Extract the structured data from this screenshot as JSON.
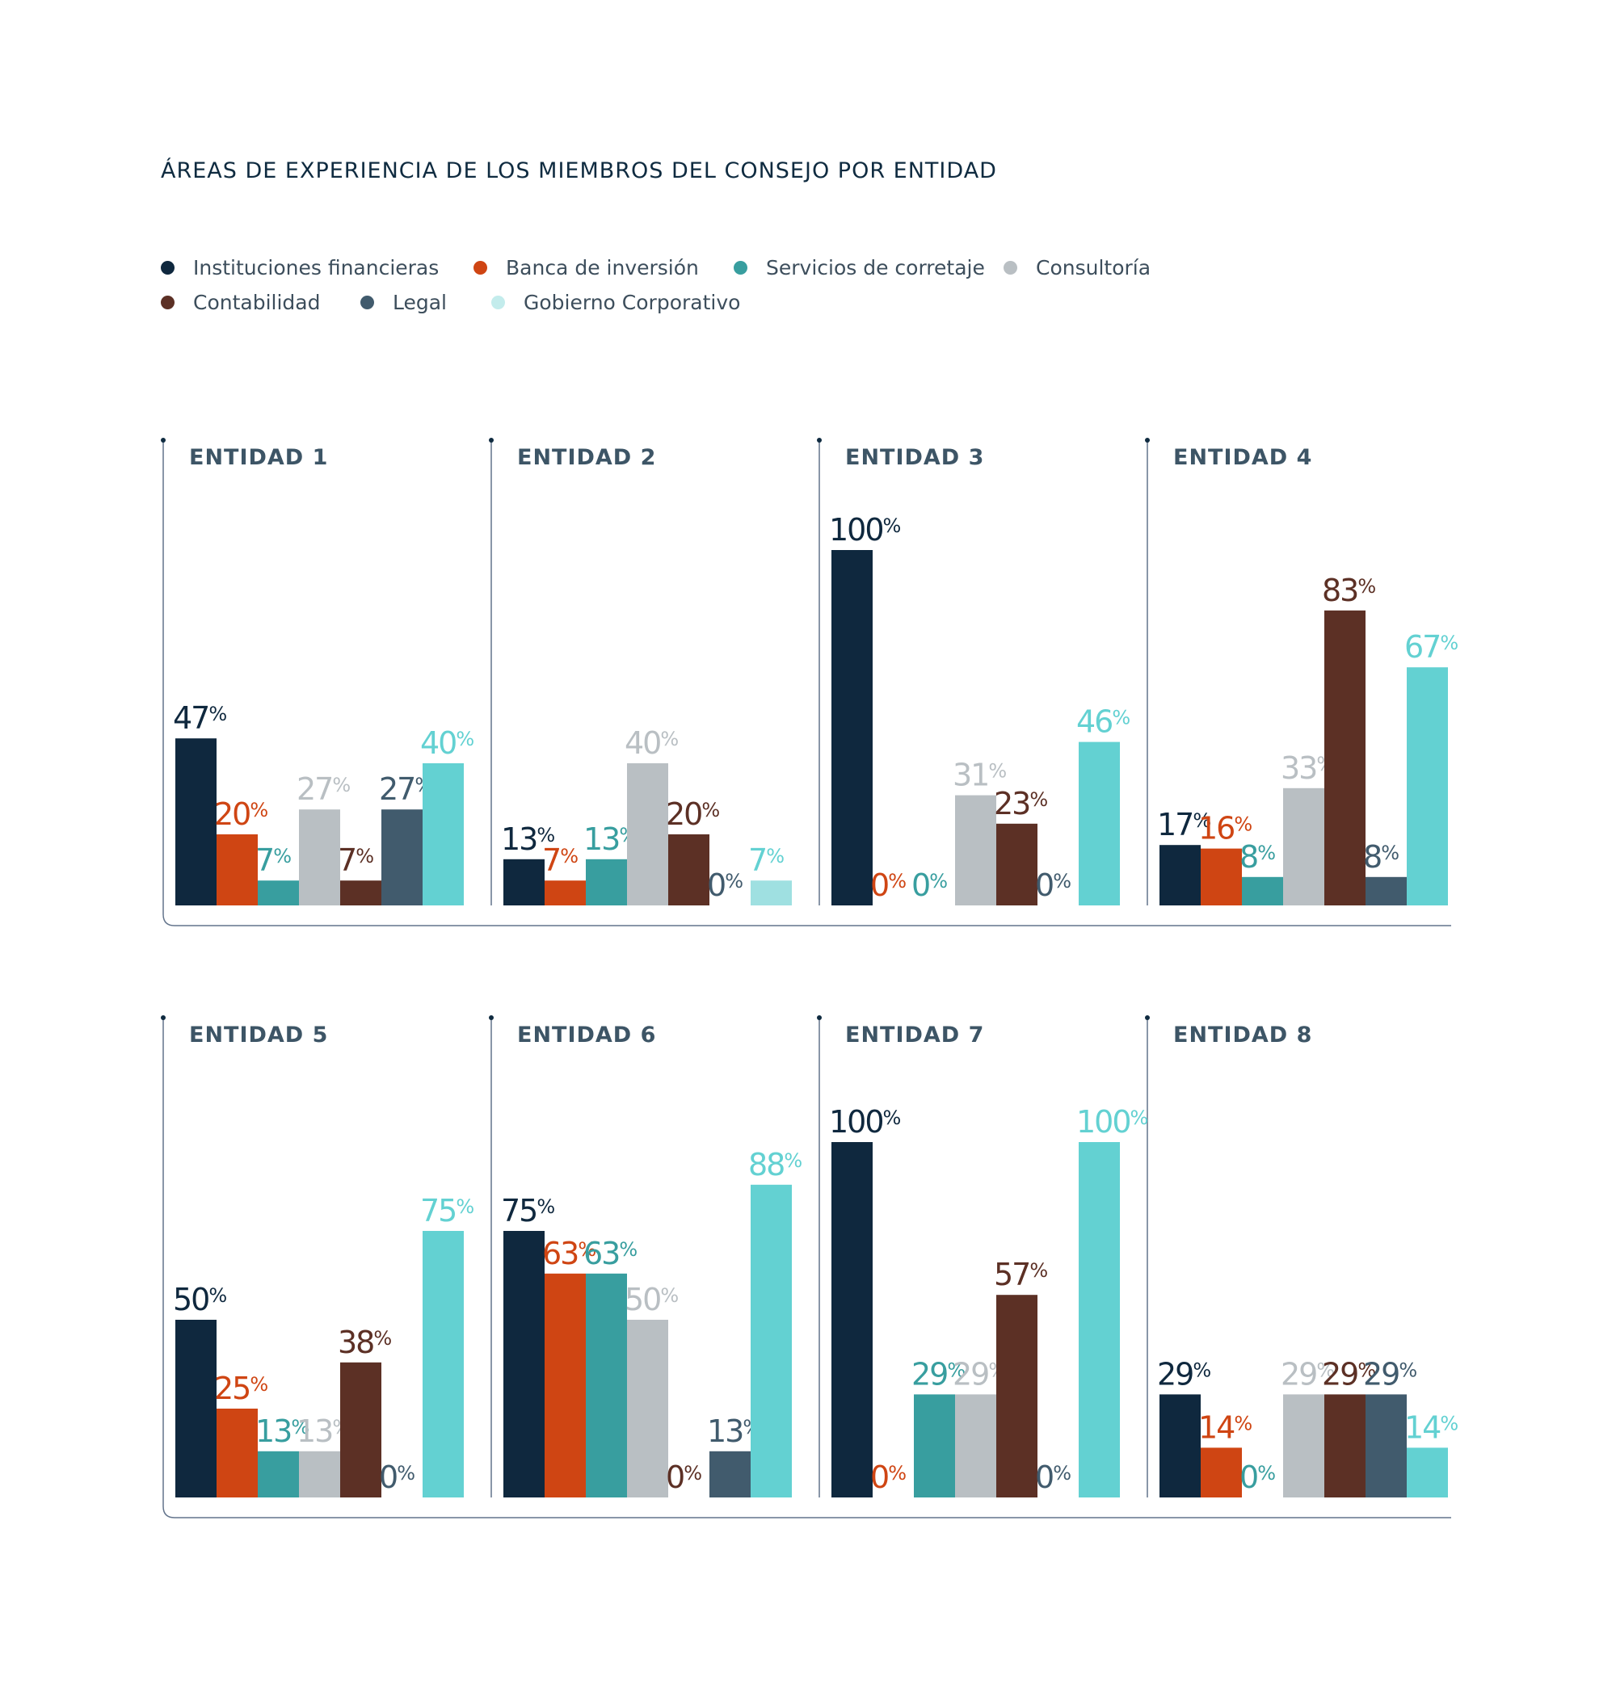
{
  "chart_data": {
    "type": "bar",
    "title": "ÁREAS DE EXPERIENCIA DE LOS MIEMBROS DEL CONSEJO POR ENTIDAD",
    "unit_symbol": "%",
    "categories": [
      "ENTIDAD 1",
      "ENTIDAD 2",
      "ENTIDAD 3",
      "ENTIDAD 4",
      "ENTIDAD 5",
      "ENTIDAD 6",
      "ENTIDAD 7",
      "ENTIDAD 8"
    ],
    "ylim": [
      0,
      100
    ],
    "grid": false,
    "legend_position": "top-left",
    "series": [
      {
        "name": "Instituciones financieras",
        "color": "#0f283e",
        "values": [
          47,
          13,
          100,
          17,
          50,
          75,
          100,
          29
        ]
      },
      {
        "name": "Banca de inversión",
        "color": "#cf4513",
        "values": [
          20,
          7,
          0,
          16,
          25,
          63,
          0,
          14
        ]
      },
      {
        "name": "Servicios de corretaje",
        "color": "#389e9f",
        "values": [
          7,
          13,
          0,
          8,
          13,
          63,
          29,
          0
        ]
      },
      {
        "name": "Consultoría",
        "color": "#b9bfc3",
        "values": [
          27,
          40,
          31,
          33,
          13,
          50,
          29,
          29
        ]
      },
      {
        "name": "Contabilidad",
        "color": "#5c3025",
        "values": [
          7,
          20,
          23,
          83,
          38,
          0,
          57,
          29
        ]
      },
      {
        "name": "Legal",
        "color": "#415b6d",
        "values": [
          27,
          0,
          0,
          8,
          0,
          13,
          0,
          29
        ]
      },
      {
        "name": "Gobierno Corporativo",
        "color": "#63d1d2",
        "values": [
          40,
          7,
          46,
          67,
          75,
          88,
          100,
          14
        ]
      }
    ],
    "special_colors": {
      "entidad_2_gobierno_corporativo_bar": "#9fe0e1",
      "legend_gobierno_corporativo_dot": "#c3ecec",
      "frame_line": "#62738b"
    }
  }
}
